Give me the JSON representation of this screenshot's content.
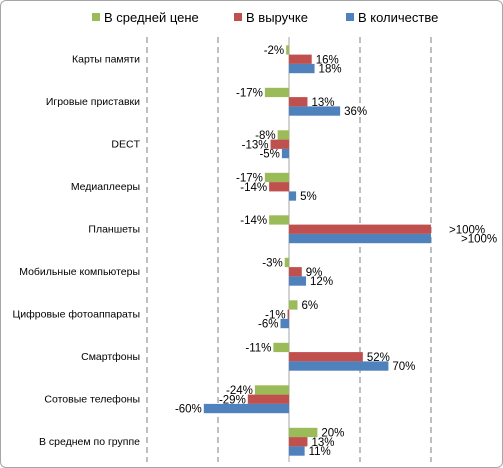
{
  "chart_data": {
    "type": "bar",
    "orientation": "horizontal",
    "categories": [
      "Карты памяти",
      "Игровые приставки",
      "DECT",
      "Медиаплееры",
      "Планшеты",
      "Мобильные компьютеры",
      "Цифровые фотоаппараты",
      "Смартфоны",
      "Сотовые телефоны",
      "В среднем по группе"
    ],
    "series": [
      {
        "name": "В средней цене",
        "color": "#9bbb59",
        "values": [
          -2,
          -17,
          -8,
          -17,
          -14,
          -3,
          6,
          -11,
          -24,
          20
        ],
        "labels": [
          "-2%",
          "-17%",
          "-8%",
          "-17%",
          "-14%",
          "-3%",
          "6%",
          "-11%",
          "-24%",
          "20%"
        ]
      },
      {
        "name": "В выручке",
        "color": "#c0504d",
        "values": [
          16,
          13,
          -13,
          -14,
          100,
          9,
          -1,
          52,
          -29,
          13
        ],
        "labels": [
          "16%",
          "13%",
          "-13%",
          "-14%",
          ">100%",
          "9%",
          "-1%",
          "52%",
          "-29%",
          "13%"
        ]
      },
      {
        "name": "В количестве",
        "color": "#4f81bd",
        "values": [
          18,
          36,
          -5,
          5,
          100,
          12,
          -6,
          70,
          -60,
          11
        ],
        "labels": [
          "18%",
          "36%",
          "-5%",
          "5%",
          ">100%",
          "12%",
          "-6%",
          "70%",
          "-60%",
          "11%"
        ]
      }
    ],
    "xlim": [
      -100,
      100
    ],
    "grid": true,
    "legend_position": "top"
  }
}
